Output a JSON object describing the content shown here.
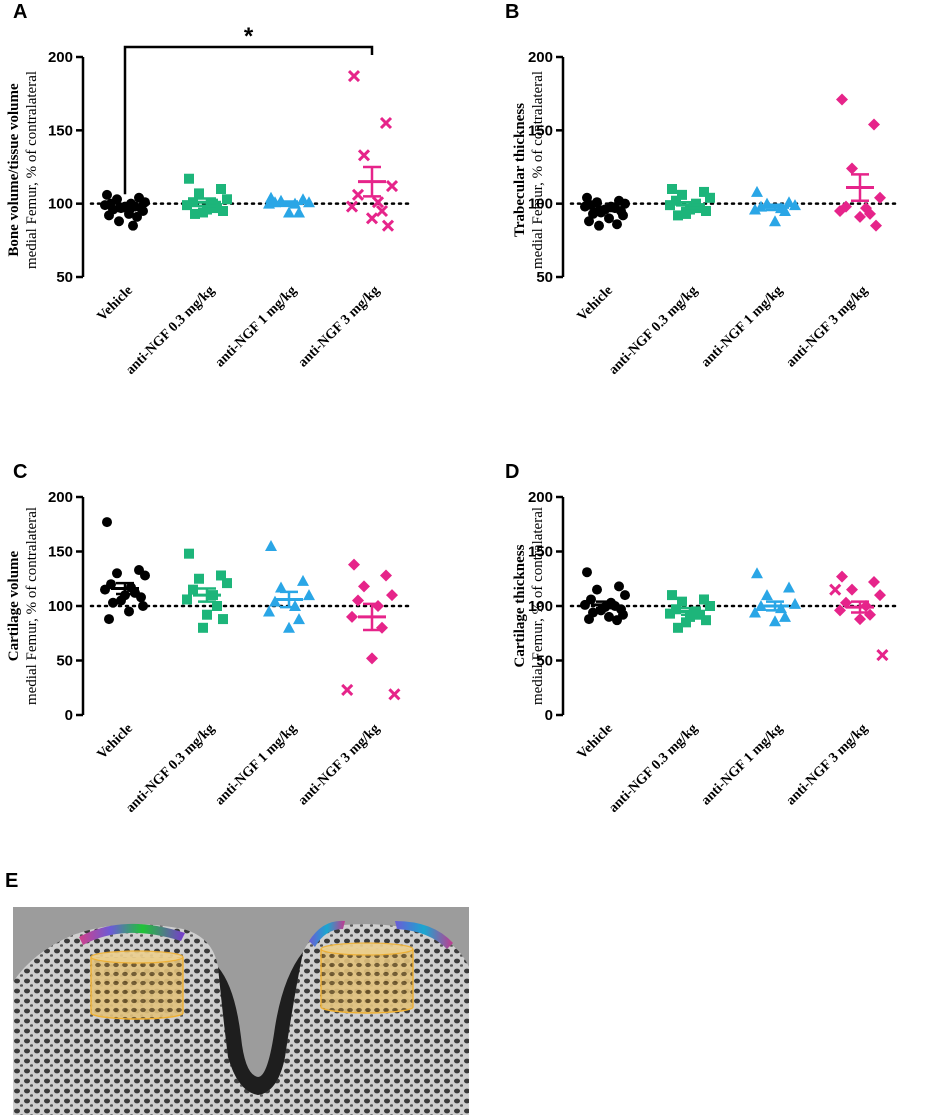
{
  "panel_labels": [
    "A",
    "B",
    "C",
    "D",
    "E"
  ],
  "colors": {
    "vehicle": "#000000",
    "dose_0_3": "#1db57a",
    "dose_1": "#2aa6e6",
    "dose_3": "#e6248a",
    "axis": "#000000"
  },
  "chart_data": [
    {
      "panel": "A",
      "type": "scatter",
      "ylabel_bold": "Bone volume/tissue volume",
      "ylabel_normal": "medial Femur, % of contralateral",
      "ylim": [
        50,
        200
      ],
      "yticks": [
        50,
        100,
        150,
        200
      ],
      "reference_line": 100,
      "categories": [
        "Vehicle",
        "anti-NGF 0.3 mg/kg",
        "anti-NGF 1 mg/kg",
        "anti-NGF 3 mg/kg"
      ],
      "series": [
        {
          "name": "Vehicle",
          "marker": "circle",
          "values": [
            106,
            104,
            103,
            101,
            100,
            100,
            99,
            98,
            98,
            97,
            97,
            96,
            95,
            93,
            92,
            91,
            88,
            85
          ],
          "mean": 97,
          "sem": 2
        },
        {
          "name": "anti-NGF 0.3 mg/kg",
          "marker": "square",
          "values": [
            117,
            110,
            107,
            103,
            101,
            100,
            99,
            97,
            96,
            95,
            94,
            93
          ],
          "mean": 101,
          "sem": 2.5
        },
        {
          "name": "anti-NGF 1 mg/kg",
          "marker": "triangle",
          "values": [
            104,
            103,
            102,
            101,
            101,
            100,
            100,
            94,
            94
          ],
          "mean": 100,
          "sem": 1.5
        },
        {
          "name": "anti-NGF 3 mg/kg",
          "marker": "x",
          "values": [
            187,
            155,
            133,
            112,
            106,
            101,
            98,
            95,
            90,
            85
          ],
          "mean": 115,
          "sem": 10
        }
      ],
      "significance": {
        "from": "Vehicle",
        "to": "anti-NGF 3 mg/kg",
        "label": "*"
      }
    },
    {
      "panel": "B",
      "type": "scatter",
      "ylabel_bold": "Trabecular thickness",
      "ylabel_normal": "medial Femur, % of contralateral",
      "ylim": [
        50,
        200
      ],
      "yticks": [
        50,
        100,
        150,
        200
      ],
      "reference_line": 100,
      "categories": [
        "Vehicle",
        "anti-NGF 0.3 mg/kg",
        "anti-NGF 1 mg/kg",
        "anti-NGF 3 mg/kg"
      ],
      "series": [
        {
          "name": "Vehicle",
          "marker": "circle",
          "values": [
            104,
            102,
            101,
            100,
            99,
            98,
            98,
            97,
            96,
            95,
            94,
            93,
            92,
            90,
            88,
            86,
            85
          ],
          "mean": 96.5,
          "sem": 1.5
        },
        {
          "name": "anti-NGF 0.3 mg/kg",
          "marker": "square",
          "values": [
            110,
            108,
            106,
            104,
            102,
            100,
            99,
            97,
            96,
            95,
            93,
            92
          ],
          "mean": 99,
          "sem": 2
        },
        {
          "name": "anti-NGF 1 mg/kg",
          "marker": "triangle",
          "values": [
            108,
            101,
            100,
            99,
            98,
            97,
            96,
            95,
            88
          ],
          "mean": 97.5,
          "sem": 1.8
        },
        {
          "name": "anti-NGF 3 mg/kg",
          "marker": "diamond",
          "values": [
            171,
            154,
            124,
            104,
            98,
            97,
            95,
            93,
            91,
            85
          ],
          "mean": 111,
          "sem": 9
        }
      ]
    },
    {
      "panel": "C",
      "type": "scatter",
      "ylabel_bold": "Cartilage volume",
      "ylabel_normal": "medial Femur, % of contralateral",
      "ylim": [
        0,
        200
      ],
      "yticks": [
        0,
        50,
        100,
        150,
        200
      ],
      "reference_line": 100,
      "categories": [
        "Vehicle",
        "anti-NGF 0.3 mg/kg",
        "anti-NGF 1 mg/kg",
        "anti-NGF 3 mg/kg"
      ],
      "series": [
        {
          "name": "Vehicle",
          "marker": "circle",
          "values": [
            177,
            133,
            130,
            128,
            120,
            117,
            115,
            112,
            110,
            108,
            105,
            103,
            100,
            95,
            88
          ],
          "mean": 116,
          "sem": 5
        },
        {
          "name": "anti-NGF 0.3 mg/kg",
          "marker": "square",
          "values": [
            148,
            128,
            125,
            121,
            115,
            110,
            106,
            100,
            92,
            88,
            80
          ],
          "mean": 110,
          "sem": 6
        },
        {
          "name": "anti-NGF 1 mg/kg",
          "marker": "triangle",
          "values": [
            155,
            123,
            117,
            110,
            104,
            100,
            95,
            88,
            80
          ],
          "mean": 106,
          "sem": 7
        },
        {
          "name": "anti-NGF 3 mg/kg",
          "marker": "diamond",
          "values": [
            138,
            128,
            118,
            110,
            105,
            100,
            90,
            80,
            52
          ],
          "mean": 90,
          "sem": 12
        },
        {
          "name": "anti-NGF 3 mg/kg (x)",
          "marker": "x",
          "values": [
            23,
            19
          ]
        }
      ]
    },
    {
      "panel": "D",
      "type": "scatter",
      "ylabel_bold": "Cartilage thickness",
      "ylabel_normal": "medial Femur, % of contralateral",
      "ylim": [
        0,
        200
      ],
      "yticks": [
        0,
        50,
        100,
        150,
        200
      ],
      "reference_line": 100,
      "categories": [
        "Vehicle",
        "anti-NGF 0.3 mg/kg",
        "anti-NGF 1 mg/kg",
        "anti-NGF 3 mg/kg"
      ],
      "series": [
        {
          "name": "Vehicle",
          "marker": "circle",
          "values": [
            131,
            118,
            115,
            110,
            106,
            103,
            101,
            100,
            99,
            97,
            96,
            94,
            92,
            90,
            88,
            87
          ],
          "mean": 101,
          "sem": 3
        },
        {
          "name": "anti-NGF 0.3 mg/kg",
          "marker": "square",
          "values": [
            110,
            106,
            104,
            100,
            97,
            95,
            93,
            92,
            90,
            87,
            85,
            80
          ],
          "mean": 95,
          "sem": 3
        },
        {
          "name": "anti-NGF 1 mg/kg",
          "marker": "triangle",
          "values": [
            130,
            117,
            110,
            102,
            100,
            98,
            94,
            90,
            86
          ],
          "mean": 100,
          "sem": 4
        },
        {
          "name": "anti-NGF 3 mg/kg",
          "marker": "diamond",
          "values": [
            127,
            122,
            115,
            110,
            103,
            100,
            96,
            92,
            88
          ],
          "mean": 99,
          "sem": 5
        },
        {
          "name": "anti-NGF 3 mg/kg (x)",
          "marker": "x",
          "values": [
            115,
            55
          ]
        }
      ]
    }
  ]
}
